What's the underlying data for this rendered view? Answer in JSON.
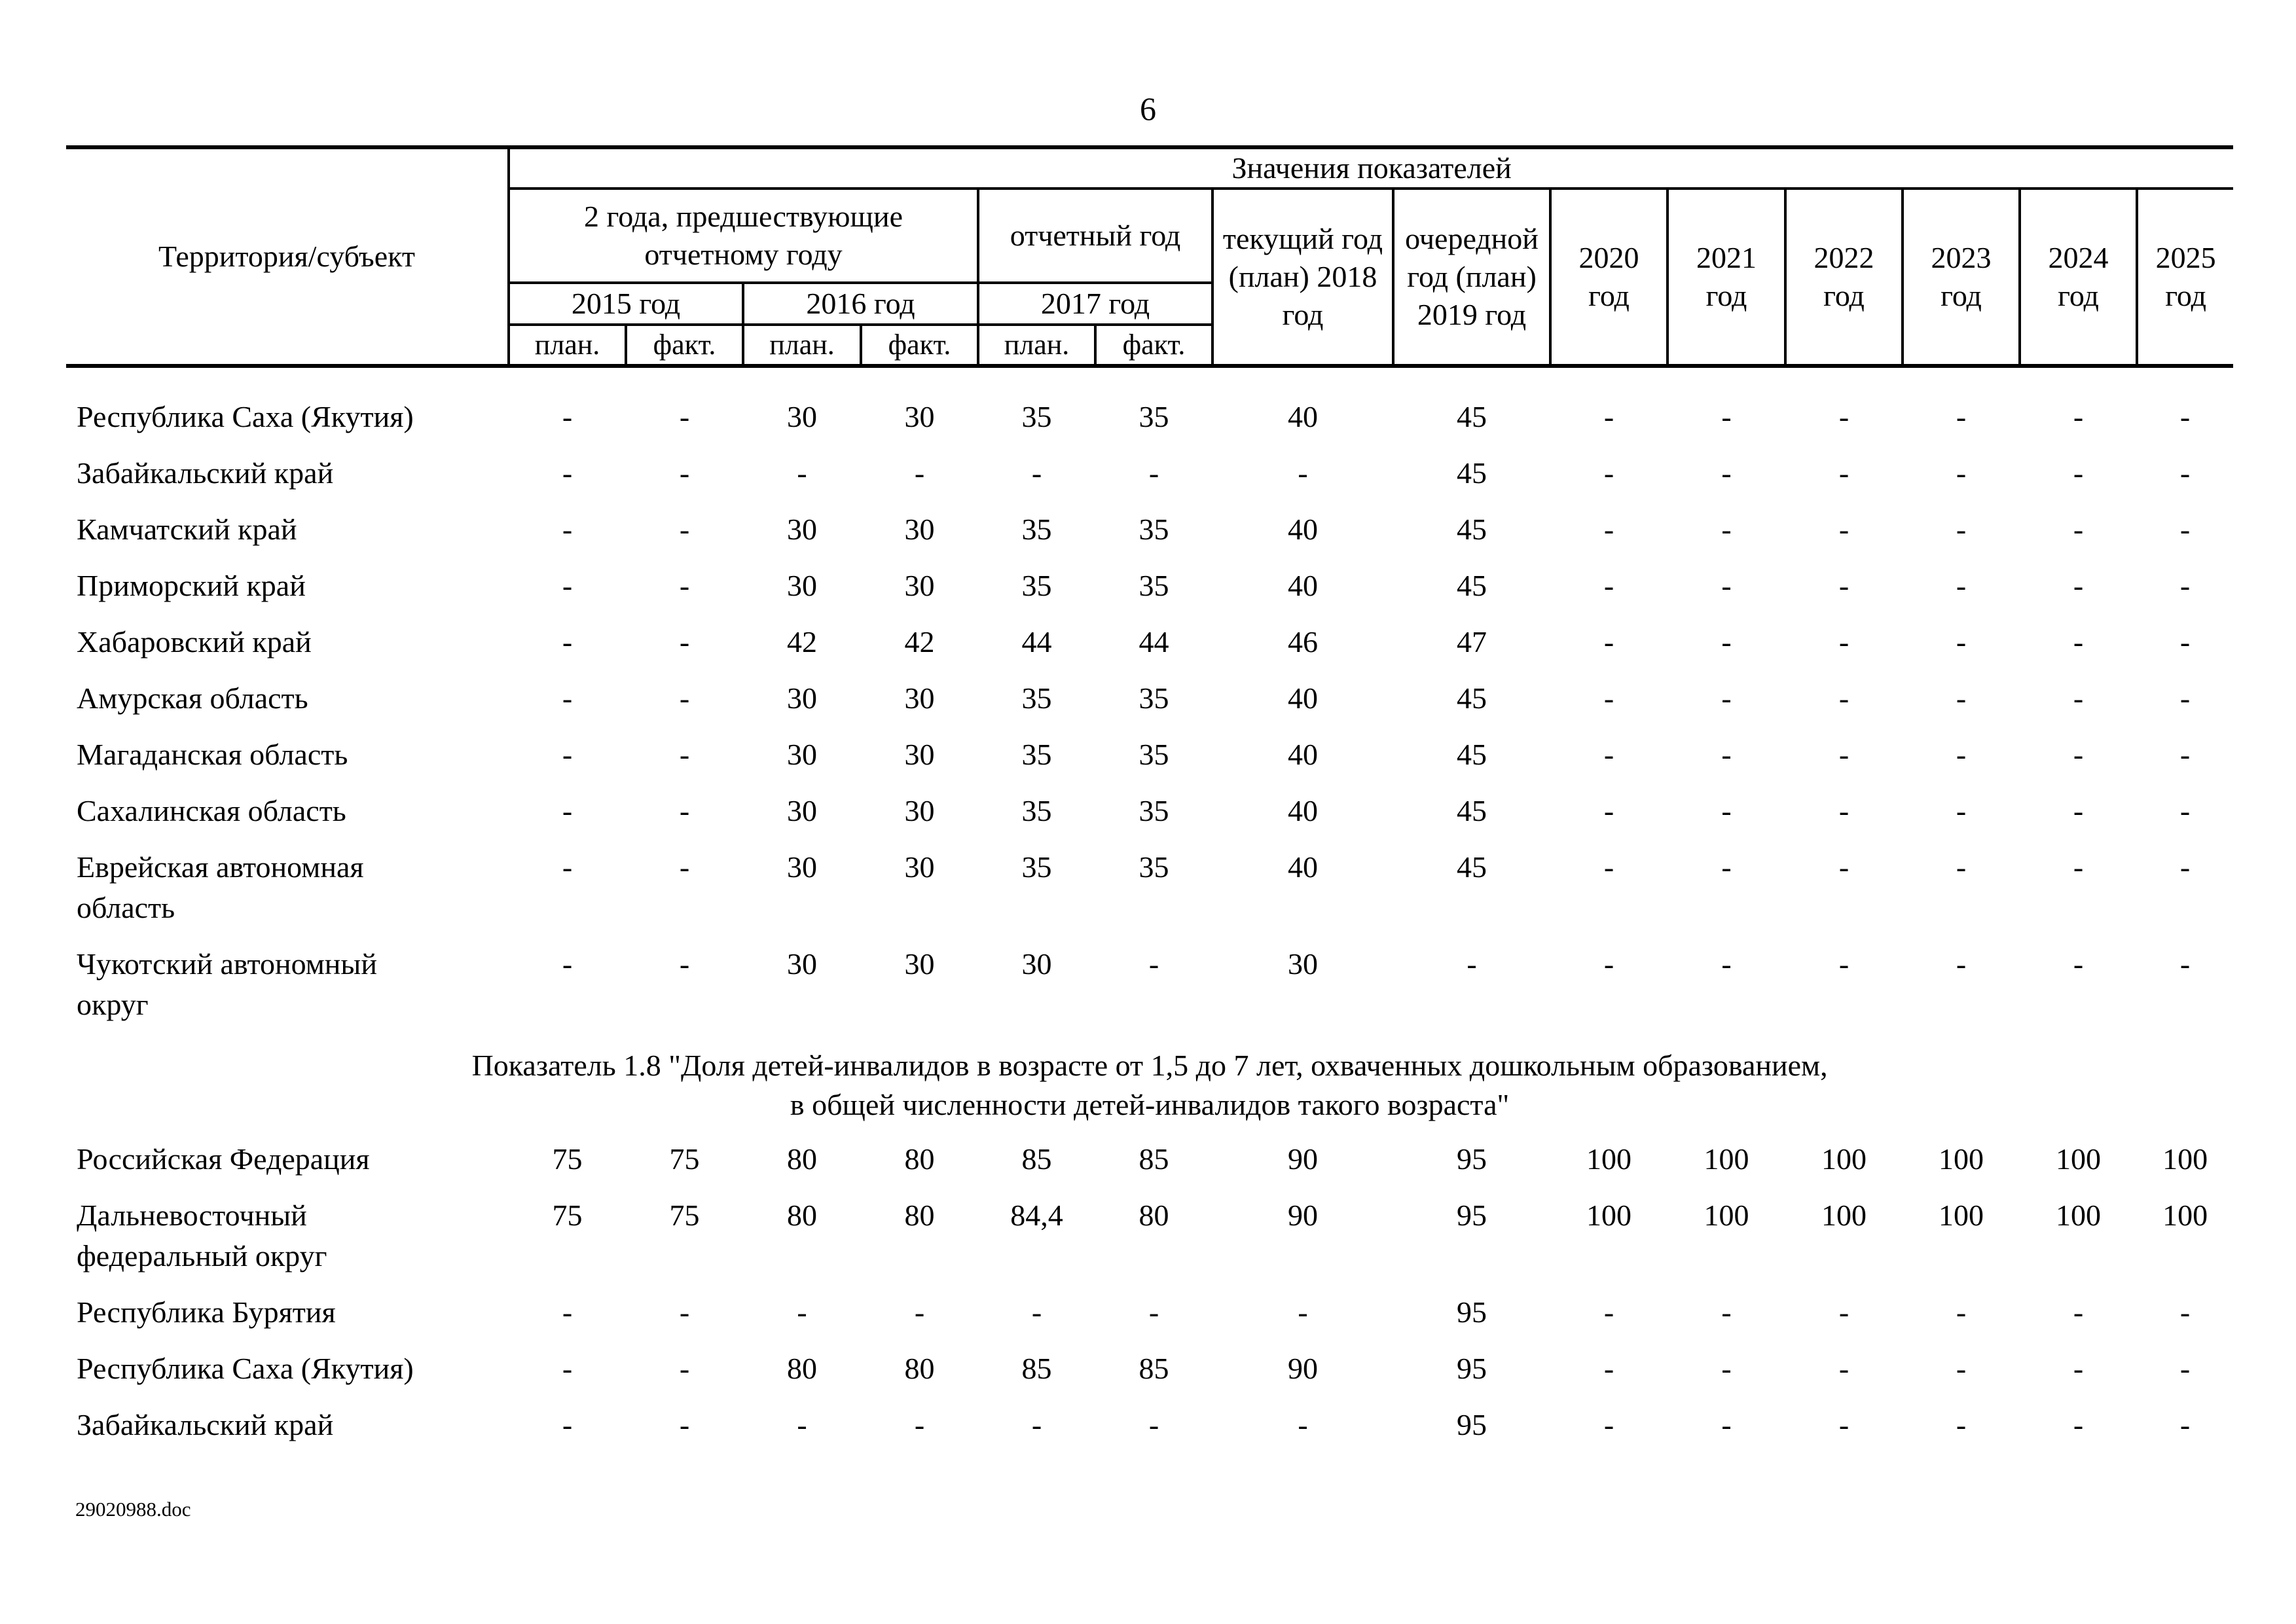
{
  "page": {
    "number": "6",
    "footer": "29020988.doc"
  },
  "table": {
    "header": {
      "territory_label": "Территория/субъект",
      "values_label": "Значения показателей",
      "prev_years_label": "2 года, предшествующие отчетному году",
      "report_year_label": "отчетный год",
      "current_year_label": "текущий год (план) 2018 год",
      "next_year_label": "очередной год (план) 2019 год",
      "detail_years": [
        "2015 год",
        "2016 год",
        "2017 год"
      ],
      "future_years": [
        "2020 год",
        "2021 год",
        "2022 год",
        "2023 год",
        "2024 год",
        "2025 год"
      ],
      "plan_label": "план.",
      "fact_label": "факт."
    },
    "rows": [
      {
        "type": "data",
        "name": "Республика Саха (Якутия)",
        "values": [
          "-",
          "-",
          "30",
          "30",
          "35",
          "35",
          "40",
          "45",
          "-",
          "-",
          "-",
          "-",
          "-",
          "-"
        ]
      },
      {
        "type": "data",
        "name": "Забайкальский край",
        "values": [
          "-",
          "-",
          "-",
          "-",
          "-",
          "-",
          "-",
          "45",
          "-",
          "-",
          "-",
          "-",
          "-",
          "-"
        ]
      },
      {
        "type": "data",
        "name": "Камчатский край",
        "values": [
          "-",
          "-",
          "30",
          "30",
          "35",
          "35",
          "40",
          "45",
          "-",
          "-",
          "-",
          "-",
          "-",
          "-"
        ]
      },
      {
        "type": "data",
        "name": "Приморский край",
        "values": [
          "-",
          "-",
          "30",
          "30",
          "35",
          "35",
          "40",
          "45",
          "-",
          "-",
          "-",
          "-",
          "-",
          "-"
        ]
      },
      {
        "type": "data",
        "name": "Хабаровский край",
        "values": [
          "-",
          "-",
          "42",
          "42",
          "44",
          "44",
          "46",
          "47",
          "-",
          "-",
          "-",
          "-",
          "-",
          "-"
        ]
      },
      {
        "type": "data",
        "name": "Амурская область",
        "values": [
          "-",
          "-",
          "30",
          "30",
          "35",
          "35",
          "40",
          "45",
          "-",
          "-",
          "-",
          "-",
          "-",
          "-"
        ]
      },
      {
        "type": "data",
        "name": "Магаданская область",
        "values": [
          "-",
          "-",
          "30",
          "30",
          "35",
          "35",
          "40",
          "45",
          "-",
          "-",
          "-",
          "-",
          "-",
          "-"
        ]
      },
      {
        "type": "data",
        "name": "Сахалинская область",
        "values": [
          "-",
          "-",
          "30",
          "30",
          "35",
          "35",
          "40",
          "45",
          "-",
          "-",
          "-",
          "-",
          "-",
          "-"
        ]
      },
      {
        "type": "data",
        "name": "Еврейская автономная\nобласть",
        "values": [
          "-",
          "-",
          "30",
          "30",
          "35",
          "35",
          "40",
          "45",
          "-",
          "-",
          "-",
          "-",
          "-",
          "-"
        ]
      },
      {
        "type": "data",
        "name": "Чукотский автономный\nокруг",
        "values": [
          "-",
          "-",
          "30",
          "30",
          "30",
          "-",
          "30",
          "-",
          "-",
          "-",
          "-",
          "-",
          "-",
          "-"
        ]
      },
      {
        "type": "section",
        "lines": [
          "Показатель 1.8 \"Доля детей-инвалидов в возрасте от 1,5 до 7 лет, охваченных дошкольным образованием,",
          "в общей численности детей-инвалидов такого возраста\""
        ]
      },
      {
        "type": "data",
        "name": "Российская Федерация",
        "values": [
          "75",
          "75",
          "80",
          "80",
          "85",
          "85",
          "90",
          "95",
          "100",
          "100",
          "100",
          "100",
          "100",
          "100"
        ]
      },
      {
        "type": "data",
        "name": "Дальневосточный\nфедеральный округ",
        "values": [
          "75",
          "75",
          "80",
          "80",
          "84,4",
          "80",
          "90",
          "95",
          "100",
          "100",
          "100",
          "100",
          "100",
          "100"
        ]
      },
      {
        "type": "data",
        "name": "Республика Бурятия",
        "values": [
          "-",
          "-",
          "-",
          "-",
          "-",
          "-",
          "-",
          "95",
          "-",
          "-",
          "-",
          "-",
          "-",
          "-"
        ]
      },
      {
        "type": "data",
        "name": "Республика Саха (Якутия)",
        "values": [
          "-",
          "-",
          "80",
          "80",
          "85",
          "85",
          "90",
          "95",
          "-",
          "-",
          "-",
          "-",
          "-",
          "-"
        ]
      },
      {
        "type": "data",
        "name": "Забайкальский край",
        "values": [
          "-",
          "-",
          "-",
          "-",
          "-",
          "-",
          "-",
          "95",
          "-",
          "-",
          "-",
          "-",
          "-",
          "-"
        ]
      }
    ]
  }
}
